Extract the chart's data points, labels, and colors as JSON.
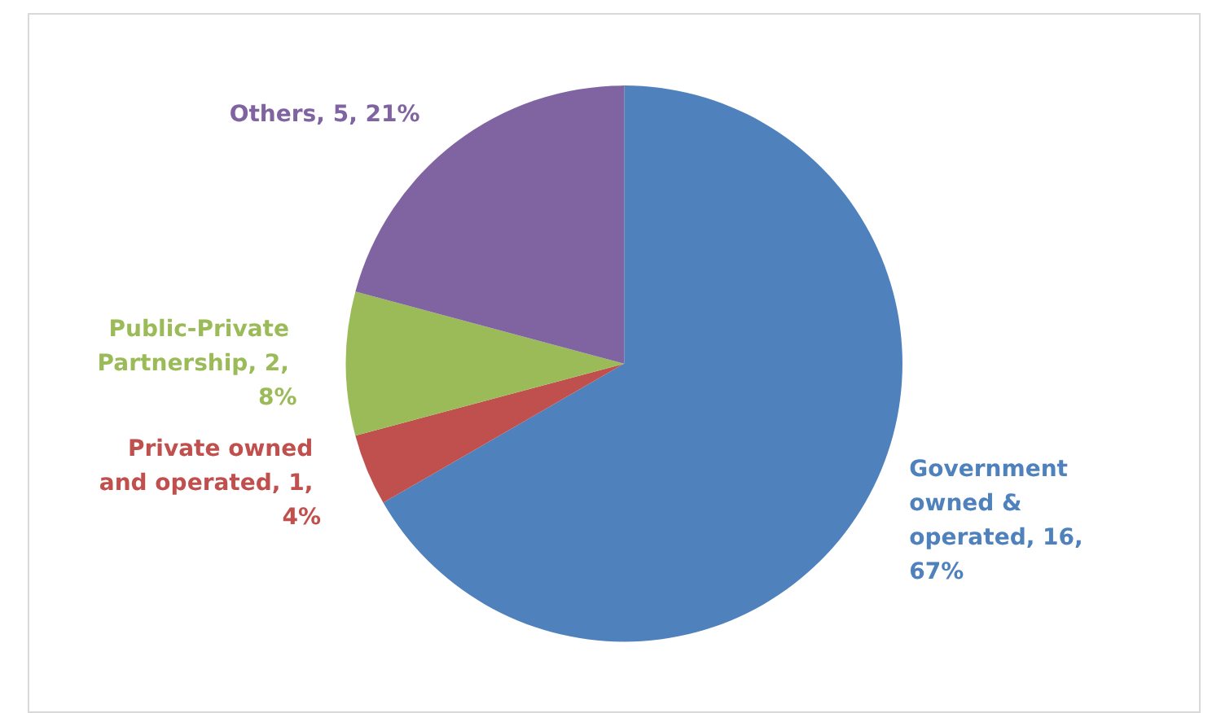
{
  "chart_data": {
    "type": "pie",
    "categories": [
      "Government owned & operated",
      "Private owned and operated",
      "Public-Private Partnership",
      "Others"
    ],
    "values": [
      16,
      1,
      2,
      5
    ],
    "value_labels": [
      "16, 67%",
      "1, 4%",
      "2, 8%",
      "5, 21%"
    ],
    "colors": [
      "#4f81bd",
      "#c0504d",
      "#9bbb59",
      "#8064a2"
    ],
    "legend": false
  }
}
